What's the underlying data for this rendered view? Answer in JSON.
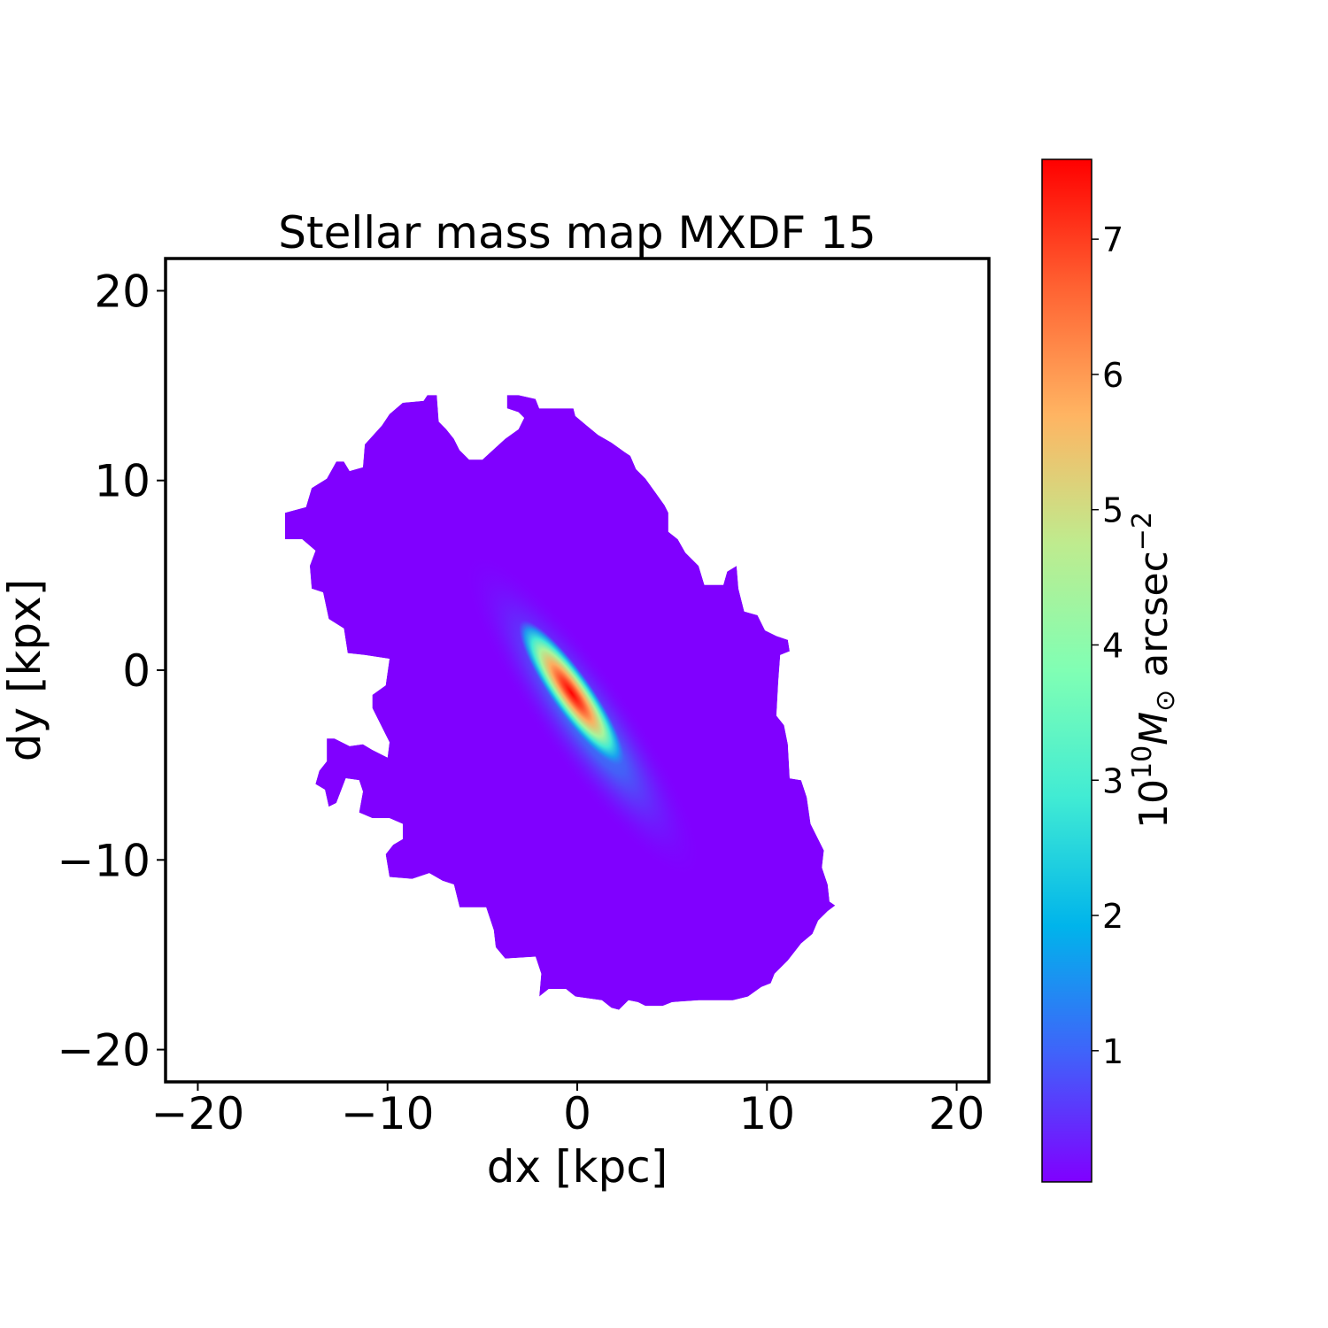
{
  "chart_data": {
    "type": "heatmap",
    "title": "Stellar mass map MXDF 15",
    "xlabel": "dx [kpc]",
    "ylabel": "dy [kpx]",
    "xlim": [
      -21.7,
      21.7
    ],
    "ylim": [
      -21.7,
      21.7
    ],
    "xticks": [
      -20,
      -10,
      0,
      10,
      20
    ],
    "yticks": [
      -20,
      -10,
      0,
      10,
      20
    ],
    "xtick_labels": [
      "−20",
      "−10",
      "0",
      "10",
      "20"
    ],
    "ytick_labels": [
      "−20",
      "−10",
      "0",
      "10",
      "20"
    ],
    "grid": false,
    "colormap": "rainbow",
    "colorbar": {
      "label_prefix": "10",
      "label_exp": "10",
      "label_unit": "M",
      "label_sub": "⊙",
      "label_rest": " arcsec",
      "label_rest_exp": "−2",
      "range": [
        0.03,
        7.59
      ],
      "ticks": [
        1,
        2,
        3,
        4,
        5,
        6,
        7
      ],
      "tick_labels": [
        "1",
        "2",
        "3",
        "4",
        "5",
        "6",
        "7"
      ]
    },
    "map": {
      "background_value": 0.03,
      "peak": {
        "x": -0.3,
        "y": -1.2,
        "value": 7.59
      },
      "major_axis_angle_deg": -55,
      "outline": [
        [
          -15.4,
          8.3
        ],
        [
          -14.3,
          8.6
        ],
        [
          -14.0,
          9.6
        ],
        [
          -13.2,
          10.1
        ],
        [
          -12.7,
          11.0
        ],
        [
          -12.3,
          11.0
        ],
        [
          -12.0,
          10.5
        ],
        [
          -11.3,
          10.7
        ],
        [
          -11.2,
          11.9
        ],
        [
          -10.3,
          12.9
        ],
        [
          -9.9,
          13.5
        ],
        [
          -9.2,
          14.1
        ],
        [
          -8.1,
          14.2
        ],
        [
          -7.9,
          14.5
        ],
        [
          -7.4,
          14.5
        ],
        [
          -7.3,
          13.1
        ],
        [
          -6.9,
          12.7
        ],
        [
          -6.5,
          12.2
        ],
        [
          -6.2,
          11.6
        ],
        [
          -5.7,
          11.1
        ],
        [
          -5.0,
          11.1
        ],
        [
          -3.8,
          12.2
        ],
        [
          -3.1,
          12.7
        ],
        [
          -2.8,
          13.3
        ],
        [
          -3.1,
          13.6
        ],
        [
          -3.7,
          13.8
        ],
        [
          -3.7,
          14.5
        ],
        [
          -3.1,
          14.5
        ],
        [
          -2.2,
          14.3
        ],
        [
          -2.0,
          13.8
        ],
        [
          -1.3,
          13.8
        ],
        [
          -0.2,
          13.8
        ],
        [
          -0.1,
          13.4
        ],
        [
          0.5,
          12.9
        ],
        [
          1.1,
          12.4
        ],
        [
          1.8,
          12.0
        ],
        [
          2.5,
          11.5
        ],
        [
          2.8,
          11.3
        ],
        [
          3.1,
          10.6
        ],
        [
          3.6,
          10.1
        ],
        [
          4.1,
          9.4
        ],
        [
          4.6,
          8.7
        ],
        [
          4.8,
          8.3
        ],
        [
          4.8,
          7.3
        ],
        [
          5.3,
          6.9
        ],
        [
          5.7,
          6.2
        ],
        [
          6.4,
          5.5
        ],
        [
          6.7,
          4.5
        ],
        [
          7.7,
          4.5
        ],
        [
          7.9,
          5.2
        ],
        [
          8.4,
          5.5
        ],
        [
          8.5,
          4.3
        ],
        [
          8.8,
          3.1
        ],
        [
          9.5,
          2.9
        ],
        [
          9.9,
          2.1
        ],
        [
          10.5,
          1.8
        ],
        [
          11.1,
          1.6
        ],
        [
          11.2,
          1.0
        ],
        [
          10.7,
          0.8
        ],
        [
          10.6,
          -0.6
        ],
        [
          10.5,
          -2.4
        ],
        [
          10.9,
          -2.9
        ],
        [
          11.1,
          -3.9
        ],
        [
          11.2,
          -5.7
        ],
        [
          11.8,
          -5.8
        ],
        [
          12.1,
          -6.7
        ],
        [
          12.3,
          -8.1
        ],
        [
          13.0,
          -9.5
        ],
        [
          12.9,
          -10.4
        ],
        [
          13.2,
          -11.3
        ],
        [
          13.3,
          -12.2
        ],
        [
          13.6,
          -12.4
        ],
        [
          13.2,
          -12.7
        ],
        [
          12.7,
          -13.2
        ],
        [
          12.4,
          -13.9
        ],
        [
          11.8,
          -14.4
        ],
        [
          11.1,
          -15.3
        ],
        [
          10.4,
          -16.0
        ],
        [
          10.2,
          -16.5
        ],
        [
          9.7,
          -16.7
        ],
        [
          9.0,
          -17.2
        ],
        [
          8.2,
          -17.4
        ],
        [
          6.4,
          -17.4
        ],
        [
          5.0,
          -17.5
        ],
        [
          4.5,
          -17.7
        ],
        [
          3.6,
          -17.7
        ],
        [
          3.2,
          -17.5
        ],
        [
          2.7,
          -17.4
        ],
        [
          2.2,
          -17.9
        ],
        [
          1.8,
          -17.8
        ],
        [
          1.3,
          -17.4
        ],
        [
          -0.1,
          -17.2
        ],
        [
          -0.6,
          -16.8
        ],
        [
          -1.5,
          -16.8
        ],
        [
          -2.0,
          -17.2
        ],
        [
          -1.9,
          -16.0
        ],
        [
          -2.2,
          -15.1
        ],
        [
          -3.8,
          -15.2
        ],
        [
          -4.3,
          -14.6
        ],
        [
          -4.4,
          -13.7
        ],
        [
          -4.8,
          -12.5
        ],
        [
          -6.2,
          -12.5
        ],
        [
          -6.5,
          -11.3
        ],
        [
          -7.1,
          -11.1
        ],
        [
          -7.8,
          -10.7
        ],
        [
          -8.7,
          -11.0
        ],
        [
          -9.9,
          -10.9
        ],
        [
          -10.1,
          -9.7
        ],
        [
          -9.7,
          -9.2
        ],
        [
          -9.2,
          -8.9
        ],
        [
          -9.2,
          -8.1
        ],
        [
          -9.9,
          -7.8
        ],
        [
          -10.8,
          -7.8
        ],
        [
          -11.5,
          -7.5
        ],
        [
          -11.3,
          -6.4
        ],
        [
          -11.5,
          -5.8
        ],
        [
          -12.2,
          -5.7
        ],
        [
          -12.7,
          -7.0
        ],
        [
          -13.1,
          -7.2
        ],
        [
          -13.3,
          -6.3
        ],
        [
          -13.8,
          -6.0
        ],
        [
          -13.6,
          -5.3
        ],
        [
          -13.2,
          -4.8
        ],
        [
          -13.2,
          -3.6
        ],
        [
          -12.8,
          -3.6
        ],
        [
          -12.0,
          -4.0
        ],
        [
          -11.3,
          -3.9
        ],
        [
          -10.8,
          -4.2
        ],
        [
          -10.0,
          -4.6
        ],
        [
          -9.9,
          -3.8
        ],
        [
          -10.8,
          -2.0
        ],
        [
          -10.8,
          -1.3
        ],
        [
          -10.1,
          -0.8
        ],
        [
          -9.9,
          0.6
        ],
        [
          -11.2,
          0.8
        ],
        [
          -12.1,
          0.9
        ],
        [
          -12.3,
          2.2
        ],
        [
          -13.1,
          2.7
        ],
        [
          -13.4,
          4.1
        ],
        [
          -14.0,
          4.3
        ],
        [
          -14.1,
          5.5
        ],
        [
          -13.8,
          6.3
        ],
        [
          -14.5,
          6.9
        ],
        [
          -15.4,
          6.9
        ]
      ]
    }
  }
}
